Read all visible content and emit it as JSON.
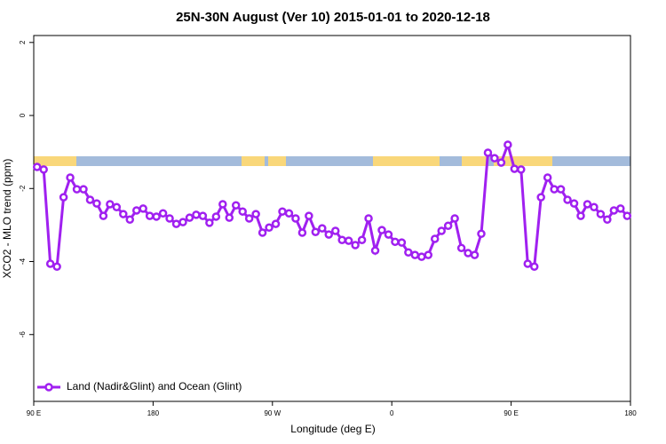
{
  "chart_data": {
    "type": "line",
    "title": "25N-30N August (Ver 10)   2015-01-01 to 2020-12-18",
    "x_label": "Longitude (deg E)",
    "y_label": "XCO2 - MLO trend (ppm)",
    "x": [
      92.5,
      97.5,
      102.5,
      107.5,
      112.5,
      117.5,
      122.5,
      127.5,
      132.5,
      137.5,
      142.5,
      147.5,
      152.5,
      157.5,
      162.5,
      167.5,
      172.5,
      177.5,
      182.5,
      187.5,
      192.5,
      197.5,
      202.5,
      207.5,
      212.5,
      217.5,
      222.5,
      227.5,
      232.5,
      237.5,
      242.5,
      247.5,
      252.5,
      257.5,
      262.5,
      267.5,
      272.5,
      277.5,
      282.5,
      287.5,
      292.5,
      297.5,
      302.5,
      307.5,
      312.5,
      317.5,
      322.5,
      327.5,
      332.5,
      337.5,
      342.5,
      347.5,
      352.5,
      357.5,
      362.5,
      367.5,
      372.5,
      377.5,
      382.5,
      387.5,
      392.5,
      397.5,
      402.5,
      407.5,
      412.5,
      417.5,
      422.5,
      427.5,
      432.5,
      437.5,
      442.5,
      447.5,
      452.5,
      457.5,
      462.5,
      467.5,
      472.5,
      477.5,
      482.5,
      487.5,
      492.5,
      497.5,
      502.5,
      507.5,
      512.5,
      517.5,
      522.5,
      527.5,
      532.5,
      537.5
    ],
    "series": [
      {
        "name": "Land (Nadir&Glint) and Ocean (Glint)",
        "color": "#a020f0",
        "values": [
          -1.41,
          -1.48,
          -4.06,
          -4.14,
          -2.24,
          -1.7,
          -2.02,
          -2.02,
          -2.31,
          -2.41,
          -2.75,
          -2.43,
          -2.51,
          -2.7,
          -2.85,
          -2.6,
          -2.55,
          -2.75,
          -2.77,
          -2.68,
          -2.82,
          -2.97,
          -2.92,
          -2.8,
          -2.72,
          -2.75,
          -2.94,
          -2.77,
          -2.43,
          -2.8,
          -2.46,
          -2.63,
          -2.82,
          -2.7,
          -3.21,
          -3.07,
          -2.97,
          -2.63,
          -2.68,
          -2.82,
          -3.21,
          -2.75,
          -3.19,
          -3.09,
          -3.26,
          -3.16,
          -3.41,
          -3.43,
          -3.55,
          -3.41,
          -2.82,
          -3.7,
          -3.14,
          -3.26,
          -3.46,
          -3.48,
          -3.75,
          -3.82,
          -3.87,
          -3.82,
          -3.38,
          -3.16,
          -3.02,
          -2.82,
          -3.63,
          -3.77,
          -3.82,
          -3.24,
          -1.02,
          -1.17,
          -1.29,
          -0.8,
          -1.46,
          -1.48,
          -4.06,
          -4.14,
          -2.24,
          -1.7,
          -2.02,
          -2.02,
          -2.31,
          -2.41,
          -2.75,
          -2.43,
          -2.51,
          -2.7,
          -2.85,
          -2.6,
          -2.55,
          -2.75
        ]
      }
    ],
    "xlim": [
      90,
      540
    ],
    "xticks": [
      {
        "value": 90,
        "label": "90 E"
      },
      180,
      {
        "value": 270,
        "label": "90 W"
      },
      {
        "value": 360,
        "label": "0"
      },
      {
        "value": 450,
        "label": "90 E"
      },
      {
        "value": 540,
        "label": "180"
      }
    ],
    "ylim": [
      -7.83,
      2.19
    ],
    "yticks": [
      -6,
      -4,
      -2,
      0,
      2
    ],
    "legend": "bottom-left"
  }
}
